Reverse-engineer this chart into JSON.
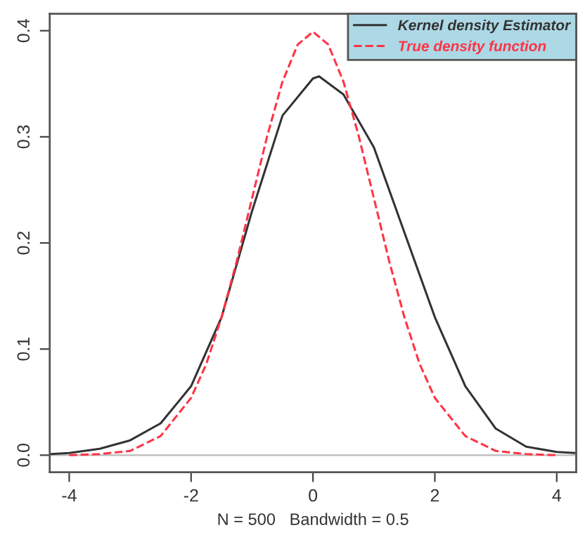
{
  "chart_data": {
    "type": "line",
    "xlabel": "N = 500   Bandwidth = 0.5",
    "series": [
      {
        "name": "Kernel density Estimator",
        "color": "#333333",
        "line_style": "solid",
        "x": [
          -4.3,
          -4,
          -3.5,
          -3,
          -2.5,
          -2,
          -1.5,
          -1,
          -0.5,
          0,
          0.1,
          0.5,
          1,
          1.5,
          2,
          2.5,
          3,
          3.5,
          4,
          4.3
        ],
        "values": [
          0.001,
          0.002,
          0.006,
          0.014,
          0.03,
          0.065,
          0.13,
          0.23,
          0.32,
          0.355,
          0.357,
          0.34,
          0.29,
          0.21,
          0.13,
          0.065,
          0.025,
          0.008,
          0.003,
          0.002
        ]
      },
      {
        "name": "True density function",
        "color": "#ff3344",
        "line_style": "dashed",
        "x": [
          -4,
          -3.5,
          -3,
          -2.5,
          -2,
          -1.75,
          -1.5,
          -1.25,
          -1,
          -0.75,
          -0.5,
          -0.25,
          0,
          0.25,
          0.5,
          0.75,
          1,
          1.25,
          1.5,
          1.75,
          2,
          2.5,
          3,
          3.5,
          4
        ],
        "values": [
          0.0,
          0.001,
          0.004,
          0.018,
          0.054,
          0.086,
          0.13,
          0.183,
          0.242,
          0.301,
          0.352,
          0.387,
          0.399,
          0.387,
          0.352,
          0.301,
          0.242,
          0.183,
          0.13,
          0.086,
          0.054,
          0.018,
          0.004,
          0.001,
          0.0
        ]
      }
    ],
    "xlim": [
      -4.32,
      4.32
    ],
    "ylim": [
      -0.016,
      0.416
    ],
    "xticks": [
      -4,
      -2,
      0,
      2,
      4
    ],
    "yticks": [
      {
        "value": 0,
        "label": "0.0"
      },
      0.1,
      0.2,
      0.3,
      0.4
    ],
    "ref_lines": [
      {
        "axis": "y",
        "value": 0,
        "color": "#bbbbbb"
      }
    ],
    "grid": false,
    "legend": "top right"
  }
}
